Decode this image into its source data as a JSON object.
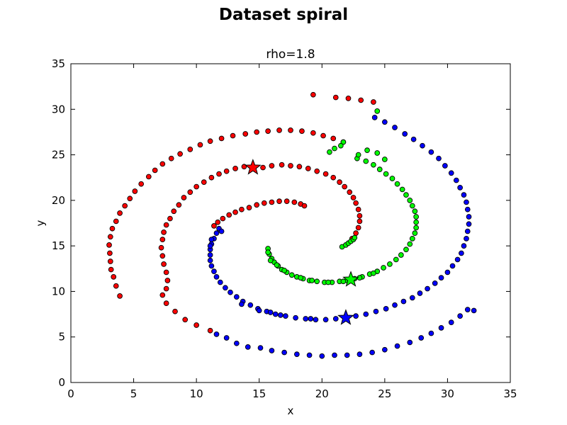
{
  "figure": {
    "suptitle": "Dataset spiral"
  },
  "chart_data": {
    "type": "scatter",
    "title": "rho=1.8",
    "xlabel": "x",
    "ylabel": "y",
    "xlim": [
      0,
      35
    ],
    "ylim": [
      0,
      35
    ],
    "xticks": [
      "0",
      "5",
      "10",
      "15",
      "20",
      "25",
      "30",
      "35"
    ],
    "yticks": [
      "0",
      "5",
      "10",
      "15",
      "20",
      "25",
      "30",
      "35"
    ],
    "grid": false,
    "legend": "none",
    "colors": {
      "red": "#ff0000",
      "blue": "#0000ff",
      "green": "#00ff00"
    },
    "series": [
      {
        "color": "#ff0000",
        "marker": "circle",
        "points": [
          [
            3.9,
            9.5
          ],
          [
            3.6,
            10.6
          ],
          [
            3.4,
            11.6
          ],
          [
            3.2,
            12.4
          ],
          [
            3.15,
            13.3
          ],
          [
            3.1,
            14.2
          ],
          [
            3.05,
            15.1
          ],
          [
            3.15,
            16.0
          ],
          [
            3.3,
            16.9
          ],
          [
            3.6,
            17.7
          ],
          [
            3.9,
            18.6
          ],
          [
            4.3,
            19.4
          ],
          [
            4.7,
            20.2
          ],
          [
            5.1,
            21.0
          ],
          [
            5.6,
            21.8
          ],
          [
            6.2,
            22.6
          ],
          [
            6.7,
            23.3
          ],
          [
            7.3,
            24.0
          ],
          [
            8.0,
            24.6
          ],
          [
            8.7,
            25.1
          ],
          [
            9.5,
            25.6
          ],
          [
            10.3,
            26.1
          ],
          [
            11.1,
            26.5
          ],
          [
            12.0,
            26.8
          ],
          [
            12.9,
            27.1
          ],
          [
            13.9,
            27.3
          ],
          [
            14.8,
            27.5
          ],
          [
            15.7,
            27.6
          ],
          [
            16.6,
            27.7
          ],
          [
            17.5,
            27.7
          ],
          [
            18.4,
            27.6
          ],
          [
            19.3,
            27.4
          ],
          [
            20.1,
            27.1
          ],
          [
            20.9,
            26.8
          ],
          [
            21.7,
            26.4
          ],
          [
            24.1,
            30.8
          ],
          [
            23.1,
            31.0
          ],
          [
            22.1,
            31.2
          ],
          [
            21.1,
            31.3
          ],
          [
            19.3,
            31.6
          ],
          [
            7.6,
            8.7
          ],
          [
            7.3,
            9.6
          ],
          [
            7.6,
            10.3
          ],
          [
            7.7,
            11.2
          ],
          [
            7.6,
            12.1
          ],
          [
            7.4,
            13.0
          ],
          [
            7.3,
            13.9
          ],
          [
            7.2,
            14.8
          ],
          [
            7.3,
            15.7
          ],
          [
            7.4,
            16.5
          ],
          [
            7.6,
            17.3
          ],
          [
            7.9,
            18.0
          ],
          [
            8.2,
            18.8
          ],
          [
            8.6,
            19.5
          ],
          [
            9.0,
            20.3
          ],
          [
            9.5,
            20.9
          ],
          [
            10.0,
            21.5
          ],
          [
            10.6,
            22.0
          ],
          [
            11.2,
            22.5
          ],
          [
            11.8,
            22.9
          ],
          [
            12.4,
            23.2
          ],
          [
            13.1,
            23.5
          ],
          [
            13.8,
            23.7
          ],
          [
            14.5,
            23.6
          ],
          [
            15.3,
            23.6
          ],
          [
            16.0,
            23.8
          ],
          [
            16.8,
            23.9
          ],
          [
            17.5,
            23.8
          ],
          [
            18.2,
            23.7
          ],
          [
            18.9,
            23.5
          ],
          [
            19.6,
            23.2
          ],
          [
            20.3,
            22.9
          ],
          [
            20.9,
            22.5
          ],
          [
            21.4,
            22.0
          ],
          [
            21.8,
            21.5
          ],
          [
            22.2,
            20.9
          ],
          [
            22.5,
            20.3
          ],
          [
            22.7,
            19.7
          ],
          [
            22.9,
            19.0
          ],
          [
            23.0,
            18.3
          ],
          [
            23.0,
            17.7
          ],
          [
            22.9,
            17.0
          ],
          [
            22.7,
            16.4
          ],
          [
            22.4,
            15.8
          ],
          [
            8.3,
            7.8
          ],
          [
            9.1,
            6.9
          ],
          [
            10.0,
            6.3
          ],
          [
            11.1,
            5.7
          ],
          [
            11.4,
            17.2
          ],
          [
            11.7,
            17.6
          ],
          [
            12.1,
            18.0
          ],
          [
            12.6,
            18.4
          ],
          [
            13.1,
            18.7
          ],
          [
            13.6,
            19.0
          ],
          [
            14.2,
            19.2
          ],
          [
            14.8,
            19.5
          ],
          [
            15.4,
            19.7
          ],
          [
            16.0,
            19.8
          ],
          [
            16.6,
            19.9
          ],
          [
            17.2,
            19.9
          ],
          [
            17.8,
            19.8
          ],
          [
            18.3,
            19.6
          ],
          [
            18.6,
            19.4
          ]
        ]
      },
      {
        "color": "#0000ff",
        "marker": "circle",
        "points": [
          [
            11.2,
            15.2
          ],
          [
            11.1,
            14.6
          ],
          [
            11.1,
            14.0
          ],
          [
            11.1,
            13.4
          ],
          [
            11.2,
            12.8
          ],
          [
            11.4,
            12.2
          ],
          [
            11.6,
            11.6
          ],
          [
            11.9,
            11.0
          ],
          [
            12.3,
            10.4
          ],
          [
            12.7,
            9.9
          ],
          [
            13.2,
            9.4
          ],
          [
            13.7,
            8.9
          ],
          [
            14.3,
            8.5
          ],
          [
            14.9,
            8.1
          ],
          [
            15.6,
            7.8
          ],
          [
            16.3,
            7.5
          ],
          [
            17.1,
            7.3
          ],
          [
            17.9,
            7.1
          ],
          [
            18.7,
            7.0
          ],
          [
            19.5,
            6.9
          ],
          [
            20.3,
            6.9
          ],
          [
            21.1,
            7.0
          ],
          [
            21.9,
            7.1
          ],
          [
            22.7,
            7.3
          ],
          [
            23.5,
            7.5
          ],
          [
            24.3,
            7.8
          ],
          [
            25.1,
            8.1
          ],
          [
            25.8,
            8.5
          ],
          [
            26.5,
            8.9
          ],
          [
            27.2,
            9.3
          ],
          [
            27.8,
            9.8
          ],
          [
            28.4,
            10.3
          ],
          [
            29.0,
            10.9
          ],
          [
            29.5,
            11.5
          ],
          [
            30.0,
            12.1
          ],
          [
            30.4,
            12.8
          ],
          [
            30.8,
            13.5
          ],
          [
            31.1,
            14.2
          ],
          [
            31.3,
            15.0
          ],
          [
            31.5,
            15.8
          ],
          [
            31.6,
            16.6
          ],
          [
            31.7,
            17.4
          ],
          [
            31.7,
            18.2
          ],
          [
            31.6,
            19.0
          ],
          [
            31.5,
            19.8
          ],
          [
            31.3,
            20.6
          ],
          [
            31.0,
            21.4
          ],
          [
            30.7,
            22.2
          ],
          [
            30.3,
            23.0
          ],
          [
            29.8,
            23.8
          ],
          [
            29.3,
            24.6
          ],
          [
            28.7,
            25.3
          ],
          [
            28.0,
            26.0
          ],
          [
            27.3,
            26.7
          ],
          [
            26.6,
            27.3
          ],
          [
            25.8,
            28.0
          ],
          [
            25.0,
            28.6
          ],
          [
            24.2,
            29.1
          ],
          [
            15.1,
            3.8
          ],
          [
            16.0,
            3.5
          ],
          [
            17.0,
            3.3
          ],
          [
            18.0,
            3.1
          ],
          [
            19.0,
            3.0
          ],
          [
            20.0,
            2.9
          ],
          [
            21.0,
            3.0
          ],
          [
            22.0,
            3.0
          ],
          [
            23.0,
            3.1
          ],
          [
            24.0,
            3.3
          ],
          [
            25.0,
            3.6
          ],
          [
            26.0,
            4.0
          ],
          [
            27.0,
            4.4
          ],
          [
            27.9,
            4.9
          ],
          [
            28.7,
            5.4
          ],
          [
            29.5,
            6.0
          ],
          [
            30.3,
            6.6
          ],
          [
            31.0,
            7.3
          ],
          [
            31.6,
            8.0
          ],
          [
            32.1,
            7.9
          ],
          [
            11.4,
            15.8
          ],
          [
            11.6,
            16.4
          ],
          [
            11.8,
            16.9
          ],
          [
            11.2,
            15.7
          ],
          [
            11.1,
            15.0
          ],
          [
            14.1,
            3.9
          ],
          [
            13.2,
            4.3
          ],
          [
            12.4,
            4.9
          ],
          [
            11.6,
            5.3
          ],
          [
            12.0,
            16.6
          ],
          [
            13.6,
            8.6
          ],
          [
            15.0,
            7.9
          ],
          [
            15.9,
            7.7
          ],
          [
            16.7,
            7.4
          ],
          [
            19.1,
            7.0
          ]
        ]
      },
      {
        "color": "#00ff00",
        "marker": "circle",
        "points": [
          [
            15.7,
            14.7
          ],
          [
            15.8,
            14.1
          ],
          [
            16.0,
            13.6
          ],
          [
            16.2,
            13.2
          ],
          [
            16.5,
            12.8
          ],
          [
            16.8,
            12.4
          ],
          [
            17.2,
            12.1
          ],
          [
            17.6,
            11.8
          ],
          [
            18.0,
            11.6
          ],
          [
            18.5,
            11.4
          ],
          [
            19.0,
            11.2
          ],
          [
            19.6,
            11.1
          ],
          [
            20.2,
            11.0
          ],
          [
            20.8,
            11.0
          ],
          [
            21.4,
            11.1
          ],
          [
            22.0,
            11.2
          ],
          [
            22.6,
            11.4
          ],
          [
            23.2,
            11.6
          ],
          [
            23.8,
            11.9
          ],
          [
            24.4,
            12.2
          ],
          [
            24.9,
            12.6
          ],
          [
            25.4,
            13.0
          ],
          [
            25.9,
            13.5
          ],
          [
            26.3,
            14.0
          ],
          [
            26.7,
            14.6
          ],
          [
            27.0,
            15.2
          ],
          [
            27.2,
            15.8
          ],
          [
            27.4,
            16.4
          ],
          [
            27.5,
            17.0
          ],
          [
            27.5,
            17.6
          ],
          [
            27.5,
            18.2
          ],
          [
            27.4,
            18.8
          ],
          [
            27.2,
            19.4
          ],
          [
            27.0,
            20.0
          ],
          [
            26.7,
            20.6
          ],
          [
            26.4,
            21.2
          ],
          [
            26.0,
            21.8
          ],
          [
            25.6,
            22.4
          ],
          [
            25.1,
            22.9
          ],
          [
            24.6,
            23.4
          ],
          [
            24.1,
            23.9
          ],
          [
            23.5,
            24.3
          ],
          [
            22.8,
            24.6
          ],
          [
            21.7,
            26.4
          ],
          [
            24.4,
            29.8
          ],
          [
            22.9,
            25.0
          ],
          [
            21.5,
            26.0
          ],
          [
            21.0,
            25.7
          ],
          [
            20.6,
            25.3
          ],
          [
            23.6,
            25.5
          ],
          [
            24.4,
            25.2
          ],
          [
            25.0,
            24.5
          ],
          [
            21.6,
            14.9
          ],
          [
            21.9,
            15.1
          ],
          [
            22.1,
            15.3
          ],
          [
            22.3,
            15.5
          ],
          [
            22.5,
            15.7
          ],
          [
            22.6,
            15.9
          ],
          [
            15.7,
            14.3
          ],
          [
            15.9,
            13.4
          ],
          [
            16.4,
            12.9
          ],
          [
            17.0,
            12.3
          ],
          [
            18.3,
            11.5
          ],
          [
            19.2,
            11.2
          ],
          [
            20.5,
            11.0
          ],
          [
            21.7,
            11.1
          ],
          [
            23.0,
            11.5
          ],
          [
            24.1,
            12.0
          ]
        ]
      }
    ],
    "highlights": [
      {
        "color": "#ff0000",
        "marker": "star",
        "x": 14.5,
        "y": 23.6
      },
      {
        "color": "#00ff00",
        "marker": "star",
        "x": 22.3,
        "y": 11.3
      },
      {
        "color": "#0000ff",
        "marker": "star",
        "x": 21.9,
        "y": 7.1
      }
    ]
  }
}
